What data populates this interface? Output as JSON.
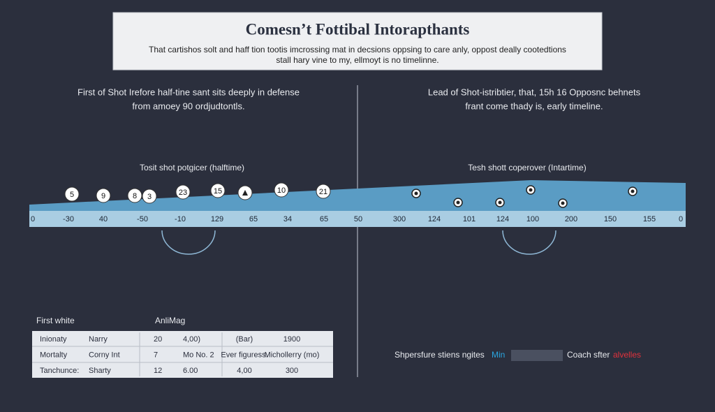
{
  "header": {
    "title": "Comesn’t Fottibal Intorapthants",
    "subtitle": [
      "That cartishos solt and haff tion tootis imcrossing mat in decsions oppsing to care anly, oppost deally cootedtions",
      "stall hary vine to my, ellmoyt is no timelinne."
    ]
  },
  "left": {
    "note": [
      "First of Shot Irefore half-tine sant sits deeply in defense",
      "from amoey 90 ordjudtontls."
    ],
    "subtitle": "Tosit shot potgicer (halftime)",
    "markers": [
      "5",
      "9",
      "8",
      "3",
      "23",
      "15",
      "10",
      "21"
    ],
    "axis": [
      "0",
      "-30",
      "40",
      "-50",
      "-10",
      "129",
      "65",
      "34",
      "65",
      "50"
    ]
  },
  "right": {
    "note": [
      "Lead of Shot-istribtier, that, 15h 16 Opposnc behnets",
      "frant come thady is, early timeline."
    ],
    "subtitle": "Tesh shott coperover (Intartime)",
    "axis": [
      "300",
      "124",
      "101",
      "124",
      "100",
      "200",
      "150",
      "155",
      "0"
    ]
  },
  "table": {
    "headers": [
      "First white",
      "AnliMag"
    ],
    "rows": [
      [
        "Inionaty",
        "Narry",
        "20",
        "4,00)",
        "(Bar)",
        "1900"
      ],
      [
        "Mortalty",
        "Corny Int",
        "7",
        "Mo No. 2",
        "Ever figuress.",
        "Michollerry (mo)"
      ],
      [
        "Tanchunce:",
        "Sharty",
        "12",
        "6.00",
        "4,00",
        "300"
      ]
    ]
  },
  "footer": {
    "text": "Shpersfure stiens ngites",
    "min": "Min",
    "coach": "Coach sfter",
    "alert": "alvelles"
  }
}
